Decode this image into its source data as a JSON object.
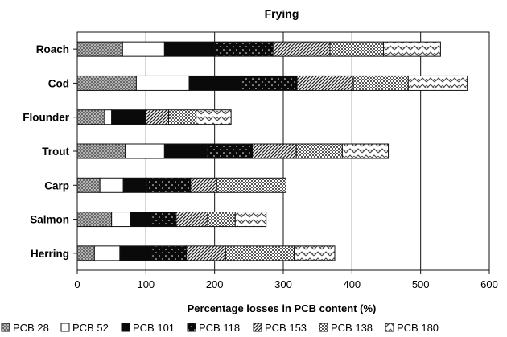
{
  "chart_data": {
    "type": "bar",
    "orientation": "horizontal",
    "stacked": true,
    "title": "Frying",
    "xlabel": "Percentage losses in PCB content (%)",
    "ylabel": "",
    "xlim": [
      0,
      600
    ],
    "xticks": [
      0,
      100,
      200,
      300,
      400,
      500,
      600
    ],
    "grid": "vertical",
    "legend_position": "bottom",
    "categories": [
      "Roach",
      "Cod",
      "Flounder",
      "Trout",
      "Carp",
      "Salmon",
      "Herring"
    ],
    "series": [
      {
        "name": "PCB 28",
        "pattern": "crosshatch-gray",
        "values": [
          66,
          86,
          40,
          70,
          33,
          50,
          25
        ]
      },
      {
        "name": "PCB 52",
        "pattern": "white",
        "values": [
          61,
          77,
          10,
          57,
          34,
          27,
          37
        ]
      },
      {
        "name": "PCB 101",
        "pattern": "black",
        "values": [
          73,
          76,
          50,
          62,
          34,
          32,
          47
        ]
      },
      {
        "name": "PCB 118",
        "pattern": "black-dots",
        "values": [
          85,
          81,
          0,
          66,
          64,
          35,
          50
        ]
      },
      {
        "name": "PCB 153",
        "pattern": "diagonal",
        "values": [
          83,
          82,
          33,
          64,
          38,
          46,
          57
        ]
      },
      {
        "name": "PCB 138",
        "pattern": "checker",
        "values": [
          78,
          80,
          40,
          67,
          101,
          40,
          100
        ]
      },
      {
        "name": "PCB 180",
        "pattern": "zigzag",
        "values": [
          83,
          86,
          51,
          67,
          0,
          45,
          59
        ]
      }
    ]
  }
}
